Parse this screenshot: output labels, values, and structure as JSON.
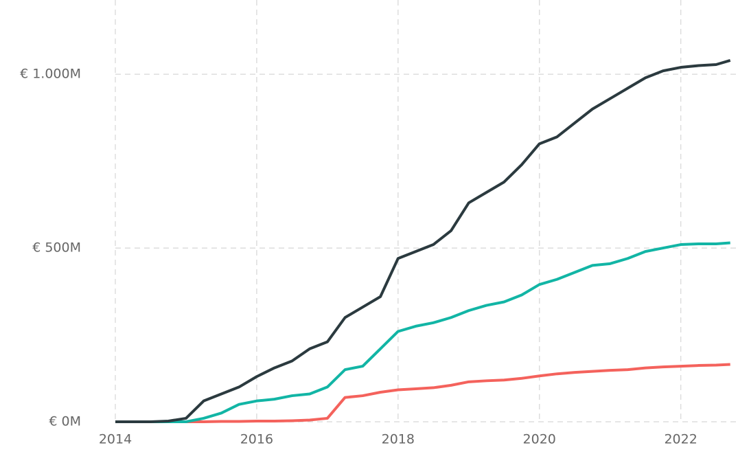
{
  "chart_data": {
    "type": "line",
    "x": [
      2014,
      2014.25,
      2014.5,
      2014.75,
      2015,
      2015.25,
      2015.5,
      2015.75,
      2016,
      2016.25,
      2016.5,
      2016.75,
      2017,
      2017.25,
      2017.5,
      2017.75,
      2018,
      2018.25,
      2018.5,
      2018.75,
      2019,
      2019.25,
      2019.5,
      2019.75,
      2020,
      2020.25,
      2020.5,
      2020.75,
      2021,
      2021.25,
      2021.5,
      2021.75,
      2022,
      2022.25,
      2022.5,
      2022.7
    ],
    "series": [
      {
        "color": "#2b3a3f",
        "values": [
          0,
          0,
          0,
          2,
          10,
          60,
          80,
          100,
          130,
          155,
          175,
          210,
          230,
          300,
          330,
          360,
          470,
          490,
          510,
          550,
          630,
          660,
          690,
          740,
          800,
          820,
          860,
          900,
          930,
          960,
          990,
          1010,
          1020,
          1025,
          1028,
          1040
        ]
      },
      {
        "color": "#12b5a5",
        "values": [
          0,
          0,
          0,
          0,
          0,
          10,
          25,
          50,
          60,
          65,
          75,
          80,
          100,
          150,
          160,
          210,
          260,
          275,
          285,
          300,
          320,
          335,
          345,
          365,
          395,
          410,
          430,
          450,
          455,
          470,
          490,
          500,
          510,
          512,
          512,
          515
        ]
      },
      {
        "color": "#f4625c",
        "values": [
          0,
          0,
          0,
          0,
          0,
          0,
          1,
          1,
          2,
          2,
          3,
          5,
          10,
          70,
          75,
          85,
          92,
          95,
          98,
          105,
          115,
          118,
          120,
          125,
          132,
          138,
          142,
          145,
          148,
          150,
          155,
          158,
          160,
          162,
          163,
          165
        ]
      }
    ],
    "xlim": [
      2014,
      2022.8
    ],
    "xticks": [
      2014,
      2016,
      2018,
      2020,
      2022
    ],
    "ylim": [
      0,
      1200
    ],
    "yticks": [
      {
        "value": 0,
        "label": "€ 0M"
      },
      {
        "value": 500,
        "label": "€ 500M"
      },
      {
        "value": 1000,
        "label": "€ 1.000M"
      }
    ],
    "grid": true
  }
}
